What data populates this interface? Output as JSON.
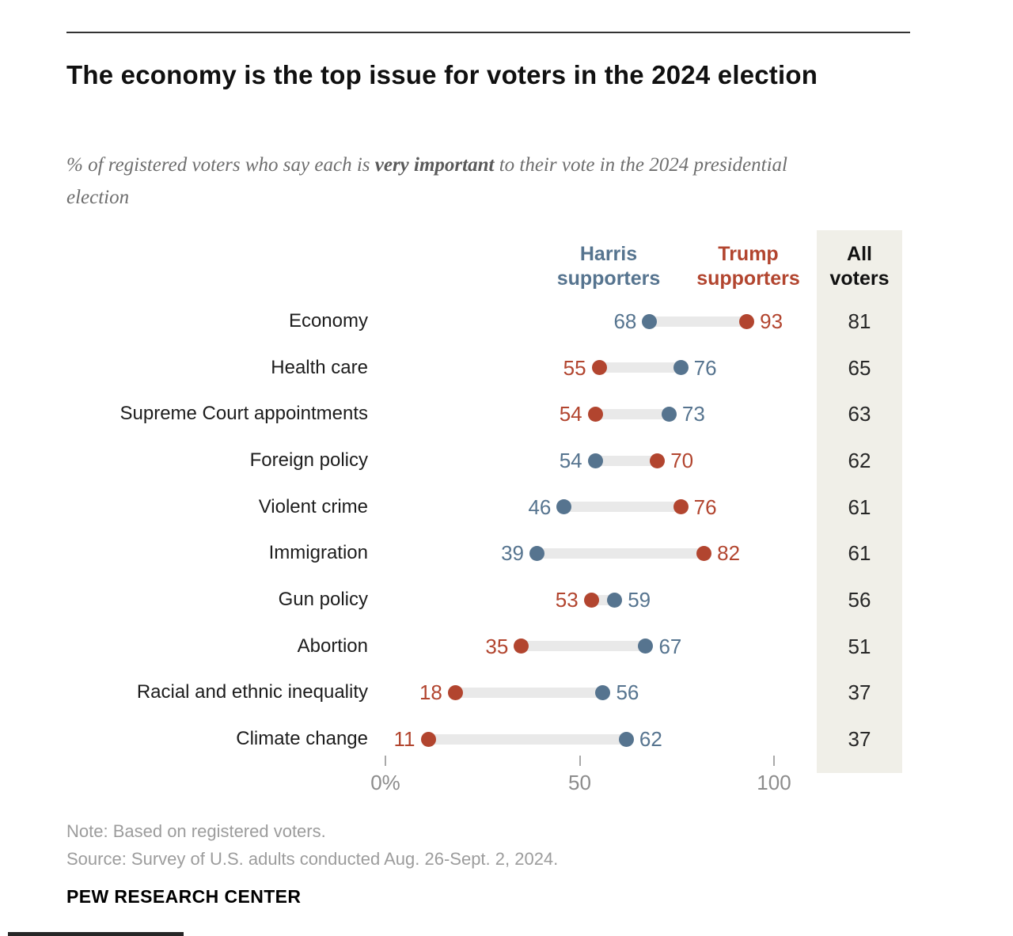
{
  "header": {
    "title": "The economy is the top issue for voters in the 2024 election",
    "subtitle_prefix": "% of registered voters who say each is ",
    "subtitle_bold": "very important",
    "subtitle_suffix": " to their vote in the 2024 presidential election"
  },
  "legend": {
    "harris": "Harris supporters",
    "trump": "Trump supporters",
    "all": "All voters"
  },
  "colors": {
    "harris": "#56748f",
    "trump": "#b2452f",
    "dumbbell_bar": "#e9e9e9",
    "all_column_bg": "#f0efe8",
    "all_value_text": "#262626"
  },
  "chart_data": {
    "type": "dumbbell-dot",
    "title": "The economy is the top issue for voters in the 2024 election",
    "subtitle": "% of registered voters who say each is very important to their vote in the 2024 presidential election",
    "categories": [
      "Economy",
      "Health care",
      "Supreme Court appointments",
      "Foreign policy",
      "Violent crime",
      "Immigration",
      "Gun policy",
      "Abortion",
      "Racial and ethnic inequality",
      "Climate change"
    ],
    "series": [
      {
        "name": "Harris supporters",
        "values": [
          68,
          76,
          73,
          54,
          46,
          39,
          59,
          67,
          56,
          62
        ]
      },
      {
        "name": "Trump supporters",
        "values": [
          93,
          55,
          54,
          70,
          76,
          82,
          53,
          35,
          18,
          11
        ]
      },
      {
        "name": "All voters",
        "values": [
          81,
          65,
          63,
          62,
          61,
          61,
          56,
          51,
          37,
          37
        ]
      }
    ],
    "xlim": [
      0,
      100
    ],
    "axis_ticks": [
      {
        "value": 0,
        "label": "0%"
      },
      {
        "value": 50,
        "label": "50"
      },
      {
        "value": 100,
        "label": "100"
      }
    ],
    "grid": false,
    "legend_position": "top"
  },
  "footer": {
    "note": "Note: Based on registered voters.",
    "source": "Source: Survey of U.S. adults conducted Aug. 26-Sept. 2, 2024.",
    "brand": "PEW RESEARCH CENTER"
  }
}
